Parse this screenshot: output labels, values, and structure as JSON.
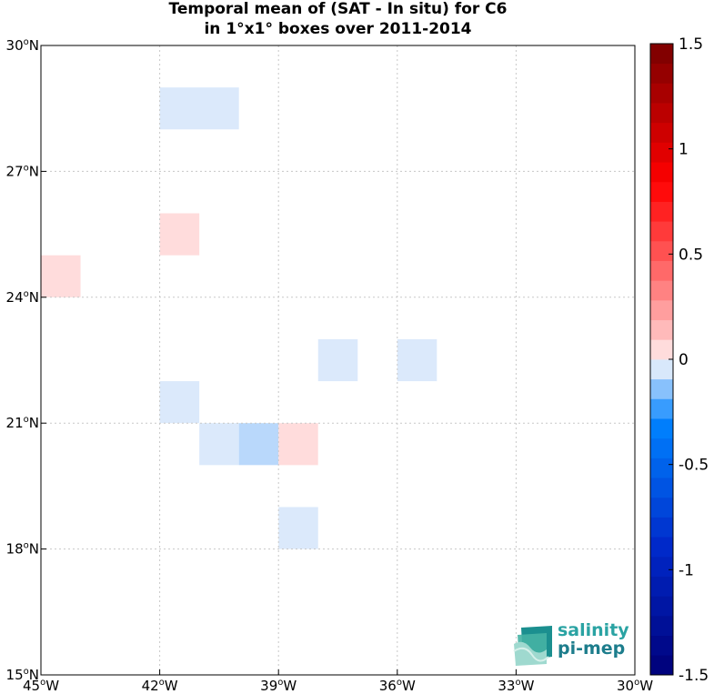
{
  "chart_data": {
    "type": "heatmap",
    "title": "Temporal mean of (SAT - In situ) for C6",
    "subtitle": "in 1°x1° boxes over 2011-2014",
    "x_range": [
      -45,
      -30
    ],
    "y_range": [
      15,
      30
    ],
    "x_ticks": [
      -45,
      -42,
      -39,
      -36,
      -33,
      -30
    ],
    "y_ticks": [
      15,
      18,
      21,
      24,
      27,
      30
    ],
    "x_tick_labels": [
      "45°W",
      "42°W",
      "39°W",
      "36°W",
      "33°W",
      "30°W"
    ],
    "y_tick_labels": [
      "15°N",
      "18°N",
      "21°N",
      "24°N",
      "27°N",
      "30°N"
    ],
    "grid": true,
    "colorbar": {
      "min": -1.5,
      "max": 1.5,
      "levels": 32,
      "tick_values": [
        1.5,
        1,
        0.5,
        0,
        -0.5,
        -1,
        -1.5
      ],
      "tick_labels": [
        "1.5",
        "1",
        "0.5",
        "0",
        "-0.5",
        "-1",
        "-1.5"
      ]
    },
    "cells": [
      {
        "lon": [
          -42,
          -40
        ],
        "lat": [
          28,
          29
        ],
        "value": -0.15
      },
      {
        "lon": [
          -42,
          -41
        ],
        "lat": [
          25,
          26
        ],
        "value": 0.15
      },
      {
        "lon": [
          -45,
          -44
        ],
        "lat": [
          24,
          25
        ],
        "value": 0.15
      },
      {
        "lon": [
          -38,
          -37
        ],
        "lat": [
          22,
          23
        ],
        "value": -0.15
      },
      {
        "lon": [
          -36,
          -35
        ],
        "lat": [
          22,
          23
        ],
        "value": -0.15
      },
      {
        "lon": [
          -42,
          -41
        ],
        "lat": [
          21,
          22
        ],
        "value": -0.15
      },
      {
        "lon": [
          -41,
          -40
        ],
        "lat": [
          20,
          21
        ],
        "value": -0.15
      },
      {
        "lon": [
          -40,
          -39
        ],
        "lat": [
          20,
          21
        ],
        "value": -0.3
      },
      {
        "lon": [
          -39,
          -38
        ],
        "lat": [
          20,
          21
        ],
        "value": 0.15
      },
      {
        "lon": [
          -39,
          -38
        ],
        "lat": [
          18,
          19
        ],
        "value": -0.15
      }
    ]
  },
  "logo": {
    "text_line1": "salinity",
    "text_line2": "pi-mep"
  }
}
